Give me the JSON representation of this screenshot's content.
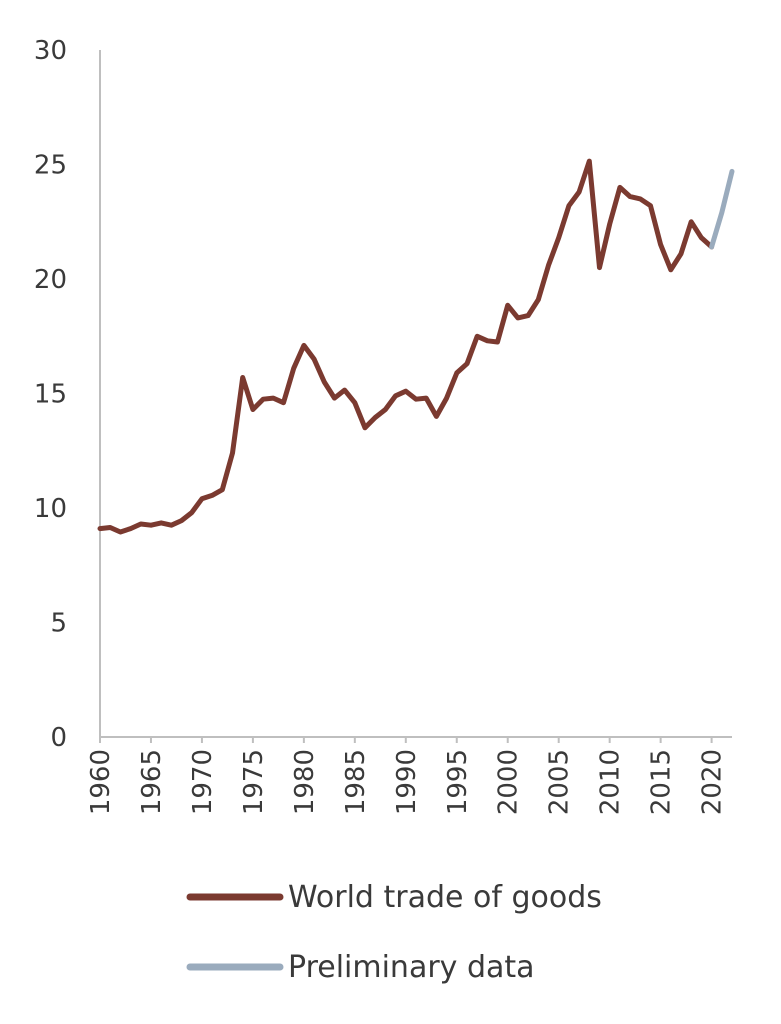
{
  "chart_data": {
    "type": "line",
    "title": "",
    "xlabel": "",
    "ylabel": "",
    "xlim": [
      1960,
      2022
    ],
    "ylim": [
      0,
      30
    ],
    "yticks": [
      "0",
      "5",
      "10",
      "15",
      "20",
      "25",
      "30"
    ],
    "xticks": [
      "1960",
      "1965",
      "1970",
      "1975",
      "1980",
      "1985",
      "1990",
      "1995",
      "2000",
      "2005",
      "2010",
      "2015",
      "2020"
    ],
    "grid": false,
    "legend_position": "bottom",
    "series": [
      {
        "name": "World trade of goods",
        "color": "#7b3a30",
        "x": [
          1960,
          1961,
          1962,
          1963,
          1964,
          1965,
          1966,
          1967,
          1968,
          1969,
          1970,
          1971,
          1972,
          1973,
          1974,
          1975,
          1976,
          1977,
          1978,
          1979,
          1980,
          1981,
          1982,
          1983,
          1984,
          1985,
          1986,
          1987,
          1988,
          1989,
          1990,
          1991,
          1992,
          1993,
          1994,
          1995,
          1996,
          1997,
          1998,
          1999,
          2000,
          2001,
          2002,
          2003,
          2004,
          2005,
          2006,
          2007,
          2008,
          2009,
          2010,
          2011,
          2012,
          2013,
          2014,
          2015,
          2016,
          2017,
          2018,
          2019,
          2020
        ],
        "y": [
          9.1,
          9.15,
          8.95,
          9.1,
          9.3,
          9.25,
          9.35,
          9.25,
          9.45,
          9.8,
          10.4,
          10.55,
          10.8,
          12.4,
          15.7,
          14.3,
          14.75,
          14.8,
          14.6,
          16.1,
          17.1,
          16.5,
          15.5,
          14.8,
          15.15,
          14.6,
          13.5,
          13.95,
          14.3,
          14.9,
          15.1,
          14.75,
          14.8,
          14.0,
          14.8,
          15.9,
          16.3,
          17.5,
          17.3,
          17.25,
          18.85,
          18.3,
          18.4,
          19.1,
          20.6,
          21.8,
          23.2,
          23.8,
          25.15,
          20.5,
          22.4,
          24.0,
          23.6,
          23.5,
          23.2,
          21.5,
          20.4,
          21.1,
          22.5,
          21.8,
          21.4
        ]
      },
      {
        "name": "Preliminary data",
        "color": "#9aabbd",
        "x": [
          2020,
          2021,
          2022
        ],
        "y": [
          21.4,
          22.9,
          24.7
        ]
      }
    ]
  }
}
